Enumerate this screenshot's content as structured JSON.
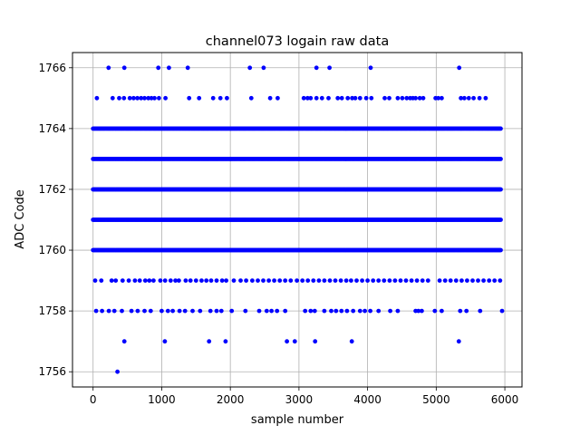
{
  "chart_data": {
    "type": "scatter",
    "title": "channel073 logain raw data",
    "xlabel": "sample number",
    "ylabel": "ADC Code",
    "xlim": [
      -300,
      6250
    ],
    "ylim": [
      1755.5,
      1766.5
    ],
    "xticks": [
      0,
      1000,
      2000,
      3000,
      4000,
      5000,
      6000
    ],
    "yticks": [
      1756,
      1758,
      1760,
      1762,
      1764,
      1766
    ],
    "grid": true,
    "marker_color": "#0000ff",
    "n_samples": 6000,
    "dense_levels": [
      1760,
      1761,
      1762,
      1763,
      1764
    ],
    "sparse_points": {
      "1766": [
        225,
        455,
        950,
        1105,
        1380,
        2285,
        2485,
        3255,
        3445,
        4045,
        5335
      ],
      "1765": [
        55,
        285,
        380,
        450,
        535,
        590,
        645,
        700,
        750,
        805,
        850,
        895,
        960,
        1055,
        1400,
        1545,
        1750,
        1855,
        1950,
        2305,
        2580,
        2690,
        3070,
        3125,
        3170,
        3255,
        3335,
        3430,
        3565,
        3625,
        3710,
        3775,
        3820,
        3890,
        3980,
        4055,
        4250,
        4315,
        4440,
        4505,
        4570,
        4620,
        4660,
        4700,
        4760,
        4810,
        4990,
        5030,
        5080,
        5360,
        5410,
        5475,
        5545,
        5630,
        5720
      ],
      "1759": [
        30,
        120,
        270,
        330,
        430,
        520,
        610,
        680,
        760,
        820,
        880,
        980,
        1050,
        1130,
        1200,
        1250,
        1350,
        1420,
        1500,
        1580,
        1650,
        1720,
        1800,
        1880,
        1940,
        2050,
        2150,
        2230,
        2320,
        2400,
        2480,
        2560,
        2640,
        2720,
        2800,
        2880,
        2970,
        3050,
        3130,
        3210,
        3290,
        3370,
        3450,
        3530,
        3610,
        3690,
        3760,
        3840,
        3920,
        4000,
        4080,
        4160,
        4240,
        4320,
        4400,
        4480,
        4560,
        4640,
        4720,
        4800,
        4880,
        5050,
        5130,
        5210,
        5290,
        5370,
        5450,
        5530,
        5610,
        5690,
        5770,
        5850,
        5930
      ],
      "1758": [
        45,
        130,
        230,
        310,
        420,
        560,
        650,
        750,
        840,
        1000,
        1090,
        1160,
        1260,
        1340,
        1450,
        1560,
        1710,
        1800,
        1870,
        2020,
        2220,
        2420,
        2530,
        2600,
        2680,
        2800,
        3090,
        3170,
        3230,
        3370,
        3470,
        3540,
        3620,
        3700,
        3790,
        3890,
        3960,
        4040,
        4160,
        4330,
        4440,
        4700,
        4740,
        4790,
        4980,
        5080,
        5350,
        5440,
        5640,
        5960
      ],
      "1757": [
        455,
        1045,
        1690,
        1930,
        2825,
        2940,
        3235,
        3770,
        5330
      ],
      "1756": [
        355
      ]
    }
  }
}
